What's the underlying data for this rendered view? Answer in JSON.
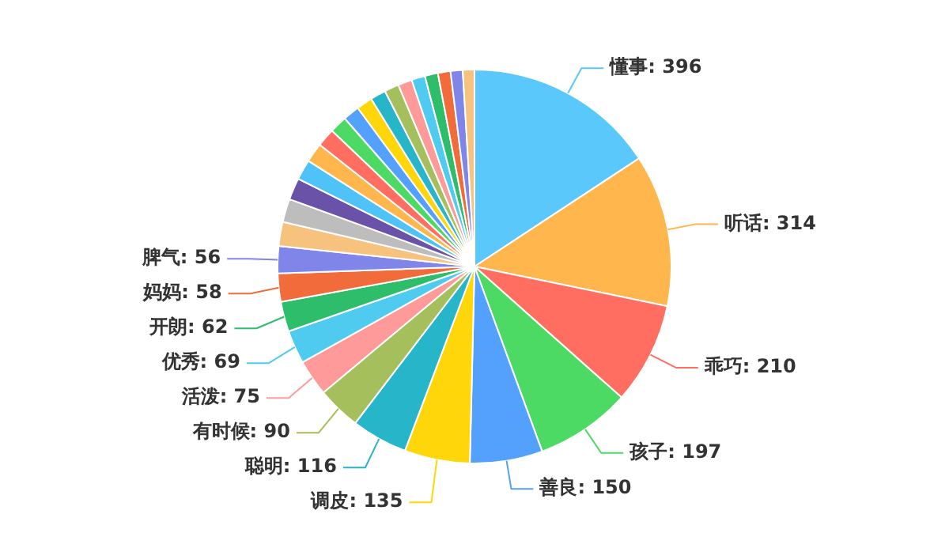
{
  "chart_data": {
    "type": "pie",
    "categories": [
      "懂事",
      "听话",
      "乖巧",
      "孩子",
      "善良",
      "调皮",
      "聪明",
      "有时候",
      "活泼",
      "优秀",
      "开朗",
      "妈妈",
      "脾气",
      null,
      null,
      null,
      null,
      null,
      null,
      null,
      null,
      null,
      null,
      null,
      null,
      null,
      null,
      null,
      null,
      null
    ],
    "values": [
      396,
      314,
      210,
      197,
      150,
      135,
      116,
      90,
      75,
      69,
      62,
      58,
      56,
      50,
      48,
      45,
      42,
      40,
      38,
      36,
      34,
      33,
      32,
      30,
      29,
      28,
      27,
      26,
      25,
      24
    ],
    "value_labels": [
      "396",
      "314",
      "210",
      "197",
      "150",
      "135",
      "116",
      "90",
      "75",
      "69",
      "62",
      "58",
      "56",
      null,
      null,
      null,
      null,
      null,
      null,
      null,
      null,
      null,
      null,
      null,
      null,
      null,
      null,
      null,
      null,
      null
    ],
    "colors": [
      "#5ac8fa",
      "#ffb74d",
      "#ff6e61",
      "#4cd964",
      "#53a0fd",
      "#ffd60a",
      "#26b5c9",
      "#a5bf5c",
      "#ff9a9a",
      "#4fcbef",
      "#2ebd6b",
      "#f26b3a",
      "#8085e9",
      "#f7c27d",
      "#bdbdbd",
      "#6a52a8",
      "#4fc3f7",
      "#ffb74d",
      "#ff6e61",
      "#4cd964",
      "#53a0fd",
      "#ffd60a",
      "#26b5c9",
      "#a5bf5c",
      "#ff9a9a",
      "#4fcbef",
      "#2ebd6b",
      "#f26b3a",
      "#8085e9",
      "#f7c27d"
    ],
    "legend": false
  }
}
